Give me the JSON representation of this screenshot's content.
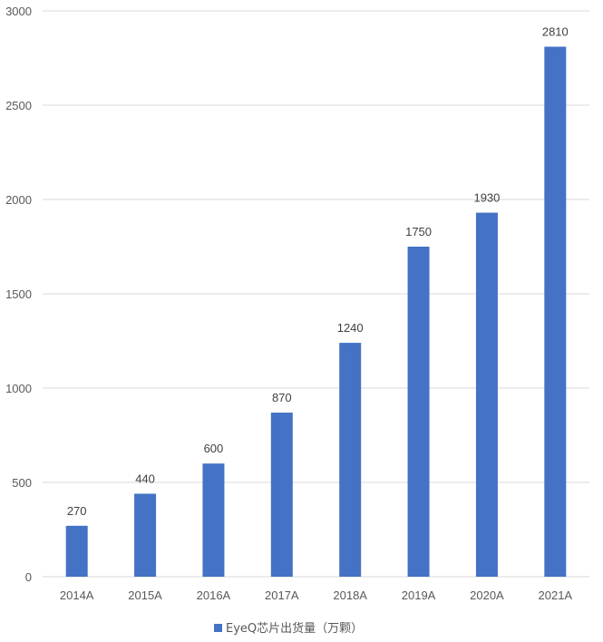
{
  "chart_data": {
    "type": "bar",
    "categories": [
      "2014A",
      "2015A",
      "2016A",
      "2017A",
      "2018A",
      "2019A",
      "2020A",
      "2021A"
    ],
    "series": [
      {
        "name": "EyeQ芯片出货量（万颗）",
        "values": [
          270,
          440,
          600,
          870,
          1240,
          1750,
          1930,
          2810
        ]
      }
    ],
    "ylim": [
      0,
      3000
    ],
    "yticks": [
      0,
      500,
      1000,
      1500,
      2000,
      2500,
      3000
    ],
    "grid": true,
    "legend_position": "bottom",
    "data_labels": true,
    "colors": {
      "bar": "#4472c4",
      "grid": "#d9d9d9",
      "text": "#595959"
    }
  }
}
